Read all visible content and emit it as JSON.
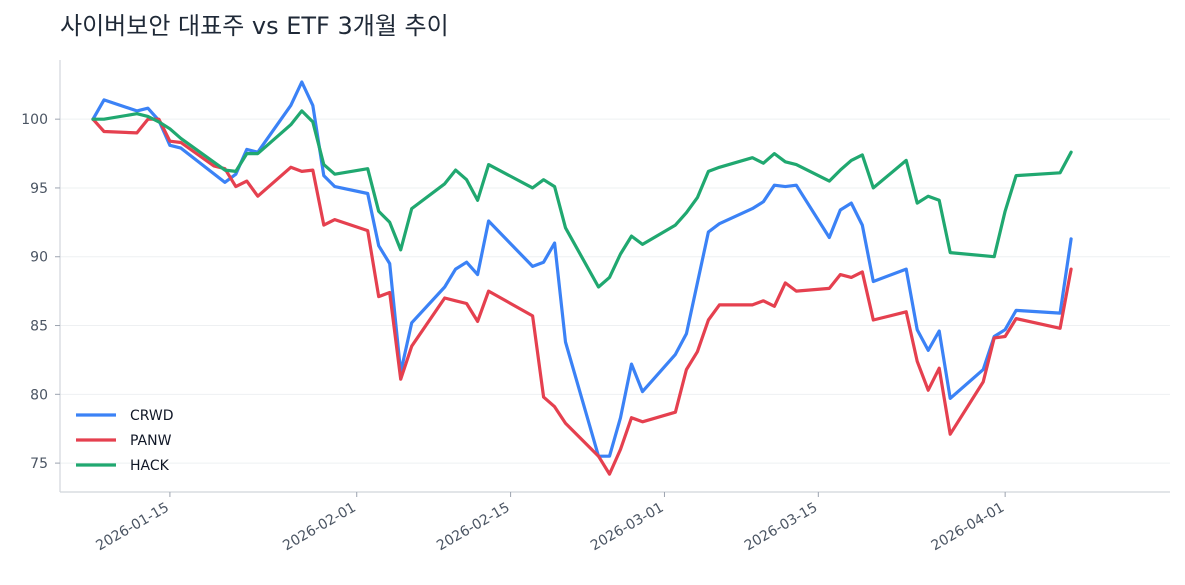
{
  "chart_data": {
    "type": "line",
    "title": "사이버보안 대표주 vs ETF 3개월 추이",
    "xlabel": "",
    "ylabel": "",
    "x_type": "date",
    "xlim": [
      "2026-01-05",
      "2026-04-16"
    ],
    "ylim": [
      72.9,
      104.3
    ],
    "x_ticks": [
      "2026-01-15",
      "2026-02-01",
      "2026-02-15",
      "2026-03-01",
      "2026-03-15",
      "2026-04-01"
    ],
    "y_ticks": [
      75,
      80,
      85,
      90,
      95,
      100
    ],
    "grid": "horizontal",
    "legend_position": "bottom-left",
    "series": [
      {
        "name": "CRWD",
        "color": "#3b82f6",
        "points": [
          [
            "2026-01-08",
            100.0
          ],
          [
            "2026-01-09",
            101.4
          ],
          [
            "2026-01-12",
            100.6
          ],
          [
            "2026-01-13",
            100.8
          ],
          [
            "2026-01-14",
            99.9
          ],
          [
            "2026-01-15",
            98.1
          ],
          [
            "2026-01-16",
            97.9
          ],
          [
            "2026-01-20",
            95.4
          ],
          [
            "2026-01-21",
            96.0
          ],
          [
            "2026-01-22",
            97.8
          ],
          [
            "2026-01-23",
            97.6
          ],
          [
            "2026-01-26",
            101.0
          ],
          [
            "2026-01-27",
            102.7
          ],
          [
            "2026-01-28",
            101.0
          ],
          [
            "2026-01-29",
            95.9
          ],
          [
            "2026-01-30",
            95.1
          ],
          [
            "2026-02-02",
            94.6
          ],
          [
            "2026-02-03",
            90.8
          ],
          [
            "2026-02-04",
            89.5
          ],
          [
            "2026-02-05",
            81.6
          ],
          [
            "2026-02-06",
            85.2
          ],
          [
            "2026-02-09",
            87.8
          ],
          [
            "2026-02-10",
            89.1
          ],
          [
            "2026-02-11",
            89.6
          ],
          [
            "2026-02-12",
            88.7
          ],
          [
            "2026-02-13",
            92.6
          ],
          [
            "2026-02-17",
            89.3
          ],
          [
            "2026-02-18",
            89.6
          ],
          [
            "2026-02-19",
            91.0
          ],
          [
            "2026-02-20",
            83.8
          ],
          [
            "2026-02-23",
            75.5
          ],
          [
            "2026-02-24",
            75.5
          ],
          [
            "2026-02-25",
            78.3
          ],
          [
            "2026-02-26",
            82.2
          ],
          [
            "2026-02-27",
            80.2
          ],
          [
            "2026-03-02",
            82.9
          ],
          [
            "2026-03-03",
            84.4
          ],
          [
            "2026-03-04",
            88.1
          ],
          [
            "2026-03-05",
            91.8
          ],
          [
            "2026-03-06",
            92.4
          ],
          [
            "2026-03-09",
            93.5
          ],
          [
            "2026-03-10",
            94.0
          ],
          [
            "2026-03-11",
            95.2
          ],
          [
            "2026-03-12",
            95.1
          ],
          [
            "2026-03-13",
            95.2
          ],
          [
            "2026-03-16",
            91.4
          ],
          [
            "2026-03-17",
            93.4
          ],
          [
            "2026-03-18",
            93.9
          ],
          [
            "2026-03-19",
            92.3
          ],
          [
            "2026-03-20",
            88.2
          ],
          [
            "2026-03-23",
            89.1
          ],
          [
            "2026-03-24",
            84.7
          ],
          [
            "2026-03-25",
            83.2
          ],
          [
            "2026-03-26",
            84.6
          ],
          [
            "2026-03-27",
            79.7
          ],
          [
            "2026-03-30",
            81.8
          ],
          [
            "2026-03-31",
            84.2
          ],
          [
            "2026-04-01",
            84.7
          ],
          [
            "2026-04-02",
            86.1
          ],
          [
            "2026-04-06",
            85.9
          ],
          [
            "2026-04-07",
            91.3
          ]
        ]
      },
      {
        "name": "PANW",
        "color": "#e5404f",
        "points": [
          [
            "2026-01-08",
            100.0
          ],
          [
            "2026-01-09",
            99.1
          ],
          [
            "2026-01-12",
            99.0
          ],
          [
            "2026-01-13",
            100.0
          ],
          [
            "2026-01-14",
            100.0
          ],
          [
            "2026-01-15",
            98.4
          ],
          [
            "2026-01-16",
            98.3
          ],
          [
            "2026-01-19",
            96.6
          ],
          [
            "2026-01-20",
            96.4
          ],
          [
            "2026-01-21",
            95.1
          ],
          [
            "2026-01-22",
            95.5
          ],
          [
            "2026-01-23",
            94.4
          ],
          [
            "2026-01-26",
            96.5
          ],
          [
            "2026-01-27",
            96.2
          ],
          [
            "2026-01-28",
            96.3
          ],
          [
            "2026-01-29",
            92.3
          ],
          [
            "2026-01-30",
            92.7
          ],
          [
            "2026-02-02",
            91.9
          ],
          [
            "2026-02-03",
            87.1
          ],
          [
            "2026-02-04",
            87.4
          ],
          [
            "2026-02-05",
            81.1
          ],
          [
            "2026-02-06",
            83.5
          ],
          [
            "2026-02-09",
            87.0
          ],
          [
            "2026-02-10",
            86.8
          ],
          [
            "2026-02-11",
            86.6
          ],
          [
            "2026-02-12",
            85.3
          ],
          [
            "2026-02-13",
            87.5
          ],
          [
            "2026-02-17",
            85.7
          ],
          [
            "2026-02-18",
            79.8
          ],
          [
            "2026-02-19",
            79.1
          ],
          [
            "2026-02-20",
            77.9
          ],
          [
            "2026-02-23",
            75.5
          ],
          [
            "2026-02-24",
            74.2
          ],
          [
            "2026-02-25",
            76.0
          ],
          [
            "2026-02-26",
            78.3
          ],
          [
            "2026-02-27",
            78.0
          ],
          [
            "2026-03-02",
            78.7
          ],
          [
            "2026-03-03",
            81.8
          ],
          [
            "2026-03-04",
            83.1
          ],
          [
            "2026-03-05",
            85.4
          ],
          [
            "2026-03-06",
            86.5
          ],
          [
            "2026-03-09",
            86.5
          ],
          [
            "2026-03-10",
            86.8
          ],
          [
            "2026-03-11",
            86.4
          ],
          [
            "2026-03-12",
            88.1
          ],
          [
            "2026-03-13",
            87.5
          ],
          [
            "2026-03-16",
            87.7
          ],
          [
            "2026-03-17",
            88.7
          ],
          [
            "2026-03-18",
            88.5
          ],
          [
            "2026-03-19",
            88.9
          ],
          [
            "2026-03-20",
            85.4
          ],
          [
            "2026-03-23",
            86.0
          ],
          [
            "2026-03-24",
            82.4
          ],
          [
            "2026-03-25",
            80.3
          ],
          [
            "2026-03-26",
            81.9
          ],
          [
            "2026-03-27",
            77.1
          ],
          [
            "2026-03-30",
            80.9
          ],
          [
            "2026-03-31",
            84.1
          ],
          [
            "2026-04-01",
            84.2
          ],
          [
            "2026-04-02",
            85.5
          ],
          [
            "2026-04-06",
            84.8
          ],
          [
            "2026-04-07",
            89.1
          ]
        ]
      },
      {
        "name": "HACK",
        "color": "#20a870",
        "points": [
          [
            "2026-01-08",
            100.0
          ],
          [
            "2026-01-09",
            100.0
          ],
          [
            "2026-01-12",
            100.4
          ],
          [
            "2026-01-13",
            100.2
          ],
          [
            "2026-01-14",
            99.8
          ],
          [
            "2026-01-15",
            99.3
          ],
          [
            "2026-01-16",
            98.6
          ],
          [
            "2026-01-20",
            96.3
          ],
          [
            "2026-01-21",
            96.2
          ],
          [
            "2026-01-22",
            97.5
          ],
          [
            "2026-01-23",
            97.5
          ],
          [
            "2026-01-26",
            99.6
          ],
          [
            "2026-01-27",
            100.6
          ],
          [
            "2026-01-28",
            99.8
          ],
          [
            "2026-01-29",
            96.7
          ],
          [
            "2026-01-30",
            96.0
          ],
          [
            "2026-02-02",
            96.4
          ],
          [
            "2026-02-03",
            93.3
          ],
          [
            "2026-02-04",
            92.5
          ],
          [
            "2026-02-05",
            90.5
          ],
          [
            "2026-02-06",
            93.5
          ],
          [
            "2026-02-09",
            95.3
          ],
          [
            "2026-02-10",
            96.3
          ],
          [
            "2026-02-11",
            95.6
          ],
          [
            "2026-02-12",
            94.1
          ],
          [
            "2026-02-13",
            96.7
          ],
          [
            "2026-02-17",
            95.0
          ],
          [
            "2026-02-18",
            95.6
          ],
          [
            "2026-02-19",
            95.1
          ],
          [
            "2026-02-20",
            92.1
          ],
          [
            "2026-02-23",
            87.8
          ],
          [
            "2026-02-24",
            88.5
          ],
          [
            "2026-02-25",
            90.2
          ],
          [
            "2026-02-26",
            91.5
          ],
          [
            "2026-02-27",
            90.9
          ],
          [
            "2026-03-02",
            92.3
          ],
          [
            "2026-03-03",
            93.2
          ],
          [
            "2026-03-04",
            94.3
          ],
          [
            "2026-03-05",
            96.2
          ],
          [
            "2026-03-06",
            96.5
          ],
          [
            "2026-03-09",
            97.2
          ],
          [
            "2026-03-10",
            96.8
          ],
          [
            "2026-03-11",
            97.5
          ],
          [
            "2026-03-12",
            96.9
          ],
          [
            "2026-03-13",
            96.7
          ],
          [
            "2026-03-16",
            95.5
          ],
          [
            "2026-03-17",
            96.3
          ],
          [
            "2026-03-18",
            97.0
          ],
          [
            "2026-03-19",
            97.4
          ],
          [
            "2026-03-20",
            95.0
          ],
          [
            "2026-03-23",
            97.0
          ],
          [
            "2026-03-24",
            93.9
          ],
          [
            "2026-03-25",
            94.4
          ],
          [
            "2026-03-26",
            94.1
          ],
          [
            "2026-03-27",
            90.3
          ],
          [
            "2026-03-31",
            90.0
          ],
          [
            "2026-04-01",
            93.3
          ],
          [
            "2026-04-02",
            95.9
          ],
          [
            "2026-04-06",
            96.1
          ],
          [
            "2026-04-07",
            97.6
          ]
        ]
      }
    ]
  }
}
